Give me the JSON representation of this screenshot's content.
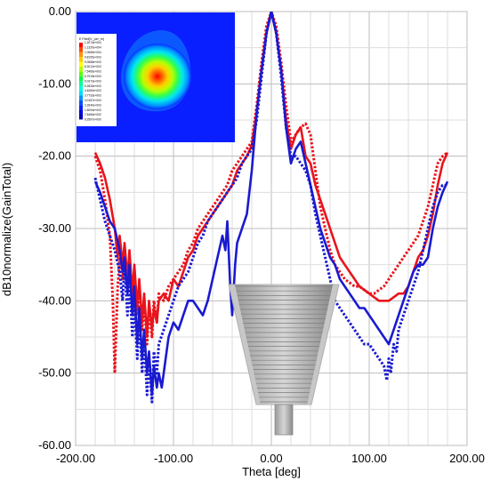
{
  "chart_data": {
    "type": "line",
    "title": "",
    "xlabel": "Theta [deg]",
    "ylabel": "dB10normalize(GainTotal)",
    "xlim": [
      -200,
      200
    ],
    "ylim": [
      -60,
      0
    ],
    "x_ticks": [
      -200,
      -100,
      0,
      100,
      200
    ],
    "x_tick_labels": [
      "-200.00",
      "-100.00",
      "0.00",
      "100.00",
      "200.00"
    ],
    "y_ticks": [
      0,
      -10,
      -20,
      -30,
      -40,
      -50,
      -60
    ],
    "y_tick_labels": [
      "0.00",
      "-10.00",
      "-20.00",
      "-30.00",
      "-40.00",
      "-50.00",
      "-60.00"
    ],
    "grid": true,
    "series": [
      {
        "color": "#e8141c",
        "dash": "solid",
        "x": [
          -180,
          -175,
          -170,
          -165,
          -160,
          -157,
          -155,
          -152,
          -150,
          -147,
          -145,
          -142,
          -140,
          -137,
          -135,
          -132,
          -130,
          -127,
          -125,
          -122,
          -120,
          -117,
          -115,
          -110,
          -105,
          -100,
          -95,
          -90,
          -85,
          -80,
          -75,
          -70,
          -65,
          -60,
          -55,
          -50,
          -45,
          -40,
          -35,
          -30,
          -25,
          -20,
          -15,
          -10,
          -5,
          0,
          5,
          10,
          15,
          20,
          25,
          30,
          35,
          40,
          45,
          50,
          55,
          60,
          65,
          70,
          75,
          80,
          85,
          90,
          95,
          100,
          105,
          110,
          115,
          120,
          125,
          130,
          135,
          140,
          145,
          150,
          155,
          160,
          165,
          170,
          175,
          180
        ],
        "y": [
          -19.5,
          -21,
          -23,
          -26,
          -30,
          -34,
          -31,
          -35,
          -32,
          -37,
          -33,
          -39,
          -35,
          -41,
          -37,
          -43,
          -39,
          -45,
          -40,
          -44,
          -41,
          -43,
          -40,
          -39,
          -40,
          -37,
          -38,
          -36,
          -34,
          -33,
          -31,
          -30,
          -29,
          -28,
          -27,
          -26,
          -25,
          -24,
          -22,
          -21,
          -20,
          -18.5,
          -14,
          -8,
          -3,
          0,
          -3,
          -8,
          -15,
          -19,
          -17,
          -16,
          -20,
          -21,
          -24,
          -26,
          -28,
          -30,
          -32,
          -34,
          -35,
          -36,
          -37,
          -38,
          -38.5,
          -39,
          -39.5,
          -40,
          -40,
          -40,
          -39.5,
          -39,
          -39,
          -38,
          -36,
          -34,
          -33,
          -31,
          -28,
          -24,
          -21,
          -19.5
        ]
      },
      {
        "color": "#e8141c",
        "dash": "dotted",
        "x": [
          -180,
          -175,
          -170,
          -165,
          -162,
          -160,
          -157,
          -155,
          -152,
          -150,
          -147,
          -145,
          -142,
          -140,
          -137,
          -135,
          -132,
          -130,
          -127,
          -125,
          -122,
          -120,
          -117,
          -115,
          -110,
          -105,
          -100,
          -95,
          -90,
          -85,
          -80,
          -75,
          -70,
          -65,
          -60,
          -55,
          -50,
          -45,
          -40,
          -35,
          -30,
          -25,
          -20,
          -15,
          -10,
          -5,
          0,
          5,
          10,
          15,
          20,
          25,
          30,
          35,
          40,
          45,
          50,
          55,
          60,
          65,
          70,
          75,
          80,
          85,
          90,
          95,
          100,
          105,
          110,
          115,
          120,
          125,
          130,
          135,
          140,
          145,
          150,
          155,
          160,
          165,
          170,
          175,
          180
        ],
        "y": [
          -20,
          -22,
          -26,
          -31,
          -40,
          -50,
          -38,
          -34,
          -37,
          -33,
          -38,
          -35,
          -40,
          -36,
          -42,
          -38,
          -44,
          -40,
          -46,
          -41,
          -45,
          -40,
          -43,
          -39,
          -40,
          -38,
          -37,
          -36,
          -35,
          -33,
          -32,
          -30,
          -29,
          -28,
          -27,
          -26,
          -25,
          -24,
          -22,
          -21,
          -20,
          -19,
          -18,
          -13,
          -7,
          -2,
          0,
          -2,
          -7,
          -13,
          -18,
          -17,
          -16,
          -15.5,
          -17,
          -22,
          -27,
          -30,
          -33,
          -35,
          -36,
          -37,
          -37.5,
          -38,
          -38,
          -38.5,
          -39,
          -39,
          -38.5,
          -38,
          -37,
          -36,
          -35,
          -34,
          -33,
          -32,
          -31,
          -29,
          -27,
          -24,
          -21,
          -20,
          -19.5
        ]
      },
      {
        "color": "#1a1ad0",
        "dash": "solid",
        "x": [
          -180,
          -175,
          -170,
          -165,
          -160,
          -155,
          -152,
          -150,
          -147,
          -145,
          -142,
          -140,
          -137,
          -135,
          -132,
          -130,
          -127,
          -125,
          -122,
          -120,
          -117,
          -115,
          -112,
          -110,
          -105,
          -100,
          -95,
          -90,
          -85,
          -80,
          -75,
          -70,
          -65,
          -60,
          -55,
          -50,
          -47,
          -45,
          -42,
          -40,
          -37,
          -35,
          -30,
          -25,
          -20,
          -15,
          -10,
          -5,
          0,
          5,
          10,
          15,
          20,
          25,
          30,
          35,
          40,
          45,
          50,
          55,
          60,
          65,
          70,
          75,
          80,
          85,
          90,
          95,
          100,
          105,
          110,
          115,
          120,
          125,
          130,
          135,
          140,
          145,
          150,
          155,
          160,
          165,
          170,
          175,
          180
        ],
        "y": [
          -23.5,
          -25,
          -27,
          -29,
          -30,
          -33,
          -36,
          -34,
          -39,
          -35,
          -42,
          -38,
          -46,
          -41,
          -48,
          -44,
          -50,
          -47,
          -53,
          -49,
          -52,
          -50,
          -52,
          -50,
          -45,
          -43,
          -44,
          -42,
          -40,
          -40,
          -41,
          -42,
          -40,
          -37,
          -34,
          -31,
          -33,
          -29,
          -38,
          -42,
          -35,
          -32,
          -30,
          -28,
          -22,
          -14,
          -8,
          -3,
          0,
          -3,
          -8,
          -16,
          -21,
          -19,
          -18,
          -21,
          -24,
          -27,
          -30,
          -32,
          -34,
          -35,
          -37,
          -38,
          -39,
          -40,
          -41,
          -41,
          -42,
          -43,
          -44,
          -45,
          -46,
          -44,
          -42,
          -40,
          -38,
          -36,
          -35,
          -35,
          -34,
          -30,
          -27,
          -25,
          -23.5
        ]
      },
      {
        "color": "#1a1ad0",
        "dash": "dotted",
        "x": [
          -180,
          -175,
          -170,
          -165,
          -160,
          -155,
          -152,
          -150,
          -147,
          -145,
          -142,
          -140,
          -137,
          -135,
          -132,
          -130,
          -127,
          -125,
          -122,
          -120,
          -117,
          -115,
          -110,
          -105,
          -100,
          -95,
          -90,
          -85,
          -80,
          -75,
          -70,
          -65,
          -60,
          -55,
          -50,
          -45,
          -40,
          -35,
          -30,
          -25,
          -20,
          -15,
          -10,
          -5,
          0,
          5,
          10,
          15,
          20,
          25,
          30,
          35,
          40,
          45,
          50,
          55,
          60,
          65,
          70,
          75,
          80,
          85,
          90,
          95,
          100,
          105,
          110,
          115,
          118,
          120,
          122,
          125,
          128,
          130,
          135,
          140,
          145,
          150,
          155,
          160,
          165,
          170,
          175,
          180
        ],
        "y": [
          -23,
          -26,
          -29,
          -31,
          -33,
          -36,
          -40,
          -35,
          -42,
          -37,
          -45,
          -40,
          -48,
          -42,
          -50,
          -45,
          -53,
          -48,
          -54,
          -47,
          -50,
          -46,
          -44,
          -42,
          -40,
          -38,
          -37,
          -36,
          -34,
          -32,
          -31,
          -29,
          -28,
          -27,
          -26,
          -25,
          -24,
          -23,
          -21,
          -20,
          -19,
          -15,
          -9,
          -3,
          0,
          -3,
          -9,
          -16,
          -20,
          -20,
          -21,
          -22,
          -24,
          -28,
          -31,
          -34,
          -37,
          -40,
          -41,
          -42,
          -43,
          -44,
          -45,
          -46,
          -46,
          -47,
          -48,
          -49,
          -51,
          -48,
          -50,
          -46,
          -47,
          -44,
          -42,
          -40,
          -38,
          -36,
          -33,
          -30,
          -27,
          -25,
          -24,
          -24
        ]
      }
    ],
    "inset_top": {
      "title": "E Field[V_per_m]",
      "colormap_colors": [
        "#ff0000",
        "#ff4a00",
        "#ff9400",
        "#ffc800",
        "#ffff00",
        "#b4ff00",
        "#5aff00",
        "#00ff3c",
        "#00ff96",
        "#00ffdc",
        "#00dcff",
        "#0096ff",
        "#0050ff",
        "#001eff",
        "#0000dc",
        "#0000b4"
      ],
      "colorbar_labels": [
        "1.2074e+004",
        "1.1320e+004",
        "1.0565e+004",
        "9.8105e+003",
        "9.0558e+003",
        "8.3012e+003",
        "7.5466e+003",
        "6.7919e+003",
        "6.0373e+003",
        "5.2826e+003",
        "4.5280e+003",
        "3.7733e+003",
        "3.0187e+003",
        "2.2640e+003",
        "1.5094e+003",
        "7.5466e+002",
        "6.2597e+000"
      ]
    }
  }
}
